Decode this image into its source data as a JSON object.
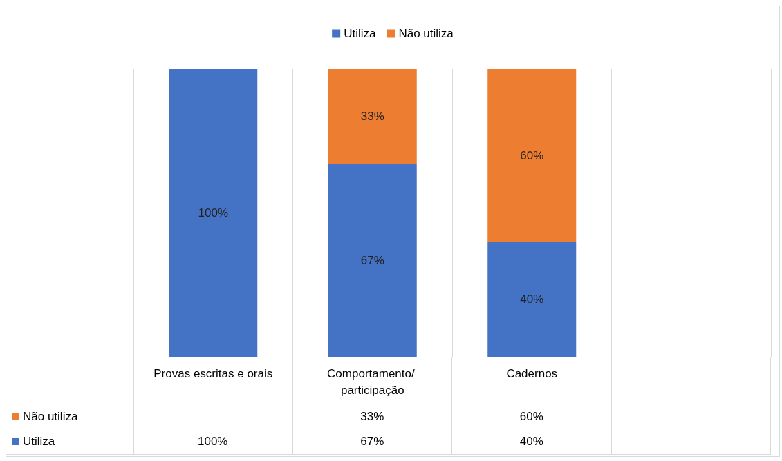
{
  "chart_data": {
    "type": "bar",
    "stacked": true,
    "categories": [
      "Provas escritas e orais",
      "Comportamento/ participação",
      "Cadernos",
      null
    ],
    "series": [
      {
        "name": "Utiliza",
        "color": "#4472c4",
        "values": [
          100,
          67,
          40,
          null
        ],
        "value_labels": [
          "100%",
          "67%",
          "40%",
          null
        ]
      },
      {
        "name": "Não utiliza",
        "color": "#ed7d31",
        "values": [
          null,
          33,
          60,
          null
        ],
        "value_labels": [
          null,
          "33%",
          "60%",
          null
        ]
      }
    ],
    "grid": "x",
    "legend": "top"
  }
}
